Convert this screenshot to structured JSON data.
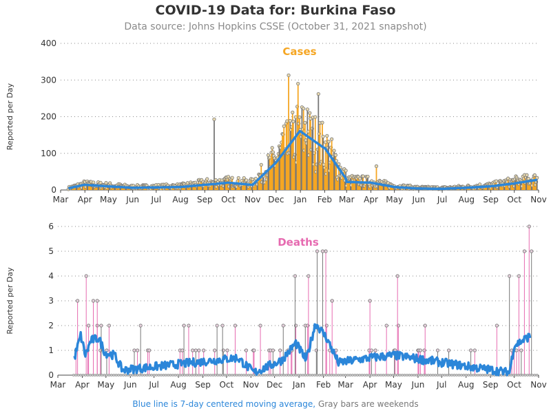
{
  "title": "COVID-19 Data for: Burkina Faso",
  "subtitle": "Data source: Johns Hopkins CSSE (October 31, 2021 snapshot)",
  "footer": {
    "blue_text": "Blue line is 7-day centered moving average,",
    "gray_text": "Gray bars are weekends"
  },
  "colors": {
    "cases": "#f5a623",
    "deaths": "#e66ab0",
    "moving_average": "#2b86d9",
    "weekend": "#777777"
  },
  "chart_data": [
    {
      "type": "bar",
      "title": "Cases",
      "ylabel": "Reported per Day",
      "ylim": [
        0,
        400
      ],
      "yticks": [
        0,
        100,
        200,
        300,
        400
      ],
      "x_tick_labels": [
        "Mar",
        "Apr",
        "May",
        "Jun",
        "Jul",
        "Aug",
        "Sep",
        "Oct",
        "Nov",
        "Dec",
        "Jan",
        "Feb",
        "Mar",
        "Apr",
        "May",
        "Jun",
        "Jul",
        "Aug",
        "Sep",
        "Oct",
        "Nov"
      ],
      "x_range": [
        "2020-03-01",
        "2021-11-01"
      ],
      "grid": "horizontal dotted",
      "peaks": [
        {
          "date": "2020-09-13",
          "value": 193
        },
        {
          "date": "2020-12-17",
          "value": 313
        },
        {
          "date": "2020-12-29",
          "value": 290
        },
        {
          "date": "2021-01-10",
          "value": 220
        },
        {
          "date": "2021-01-24",
          "value": 262
        },
        {
          "date": "2021-04-08",
          "value": 65
        }
      ],
      "series": [
        {
          "name": "Cases",
          "style": "bar",
          "monthly_level": [
            0,
            15,
            12,
            8,
            9,
            10,
            18,
            22,
            18,
            80,
            150,
            110,
            25,
            22,
            10,
            6,
            5,
            8,
            12,
            22,
            28,
            0
          ]
        },
        {
          "name": "7-day moving average",
          "style": "line",
          "monthly_level": [
            0,
            14,
            10,
            6,
            7,
            8,
            14,
            20,
            14,
            75,
            160,
            115,
            22,
            20,
            8,
            4,
            3,
            6,
            10,
            18,
            28,
            0
          ]
        }
      ]
    },
    {
      "type": "bar",
      "title": "Deaths",
      "ylabel": "Reported per Day",
      "ylim": [
        0,
        6
      ],
      "yticks": [
        0,
        1,
        2,
        3,
        4,
        5,
        6
      ],
      "x_tick_labels": [
        "Mar",
        "Apr",
        "May",
        "Jun",
        "Jul",
        "Aug",
        "Sep",
        "Oct",
        "Nov",
        "Dec",
        "Jan",
        "Feb",
        "Mar",
        "Apr",
        "May",
        "Jun",
        "Jul",
        "Aug",
        "Sep",
        "Oct",
        "Nov"
      ],
      "x_range": [
        "2020-03-01",
        "2021-11-01"
      ],
      "grid": "horizontal dotted",
      "spikes": [
        {
          "date": "2020-03-26",
          "value": 3
        },
        {
          "date": "2020-04-06",
          "value": 4
        },
        {
          "date": "2020-04-15",
          "value": 3
        },
        {
          "date": "2020-04-20",
          "value": 3
        },
        {
          "date": "2020-05-05",
          "value": 2
        },
        {
          "date": "2020-09-26",
          "value": 2
        },
        {
          "date": "2020-10-12",
          "value": 2
        },
        {
          "date": "2020-12-12",
          "value": 2
        },
        {
          "date": "2020-12-27",
          "value": 4
        },
        {
          "date": "2021-01-13",
          "value": 4
        },
        {
          "date": "2021-01-24",
          "value": 5
        },
        {
          "date": "2021-01-31",
          "value": 5
        },
        {
          "date": "2021-02-04",
          "value": 5
        },
        {
          "date": "2021-02-12",
          "value": 3
        },
        {
          "date": "2021-04-01",
          "value": 3
        },
        {
          "date": "2021-05-06",
          "value": 4
        },
        {
          "date": "2021-09-25",
          "value": 4
        },
        {
          "date": "2021-10-07",
          "value": 4
        },
        {
          "date": "2021-10-14",
          "value": 5
        },
        {
          "date": "2021-10-20",
          "value": 6
        },
        {
          "date": "2021-10-23",
          "value": 5
        }
      ],
      "moving_average_profile": [
        {
          "date": "2020-03-22",
          "value": 0.7
        },
        {
          "date": "2020-03-30",
          "value": 1.6
        },
        {
          "date": "2020-04-05",
          "value": 0.8
        },
        {
          "date": "2020-04-12",
          "value": 1.4
        },
        {
          "date": "2020-04-22",
          "value": 1.5
        },
        {
          "date": "2020-04-30",
          "value": 0.9
        },
        {
          "date": "2020-05-12",
          "value": 0.8
        },
        {
          "date": "2020-05-22",
          "value": 0.2
        },
        {
          "date": "2020-10-15",
          "value": 0.7
        },
        {
          "date": "2020-11-05",
          "value": 0.1
        },
        {
          "date": "2020-12-10",
          "value": 0.6
        },
        {
          "date": "2020-12-28",
          "value": 1.3
        },
        {
          "date": "2021-01-10",
          "value": 0.6
        },
        {
          "date": "2021-01-22",
          "value": 2.1
        },
        {
          "date": "2021-02-05",
          "value": 1.5
        },
        {
          "date": "2021-02-20",
          "value": 0.5
        },
        {
          "date": "2021-04-01",
          "value": 0.7
        },
        {
          "date": "2021-05-02",
          "value": 0.8
        },
        {
          "date": "2021-09-25",
          "value": 0.1
        },
        {
          "date": "2021-10-01",
          "value": 1.2
        },
        {
          "date": "2021-10-12",
          "value": 1.4
        },
        {
          "date": "2021-10-22",
          "value": 1.6
        }
      ]
    }
  ]
}
